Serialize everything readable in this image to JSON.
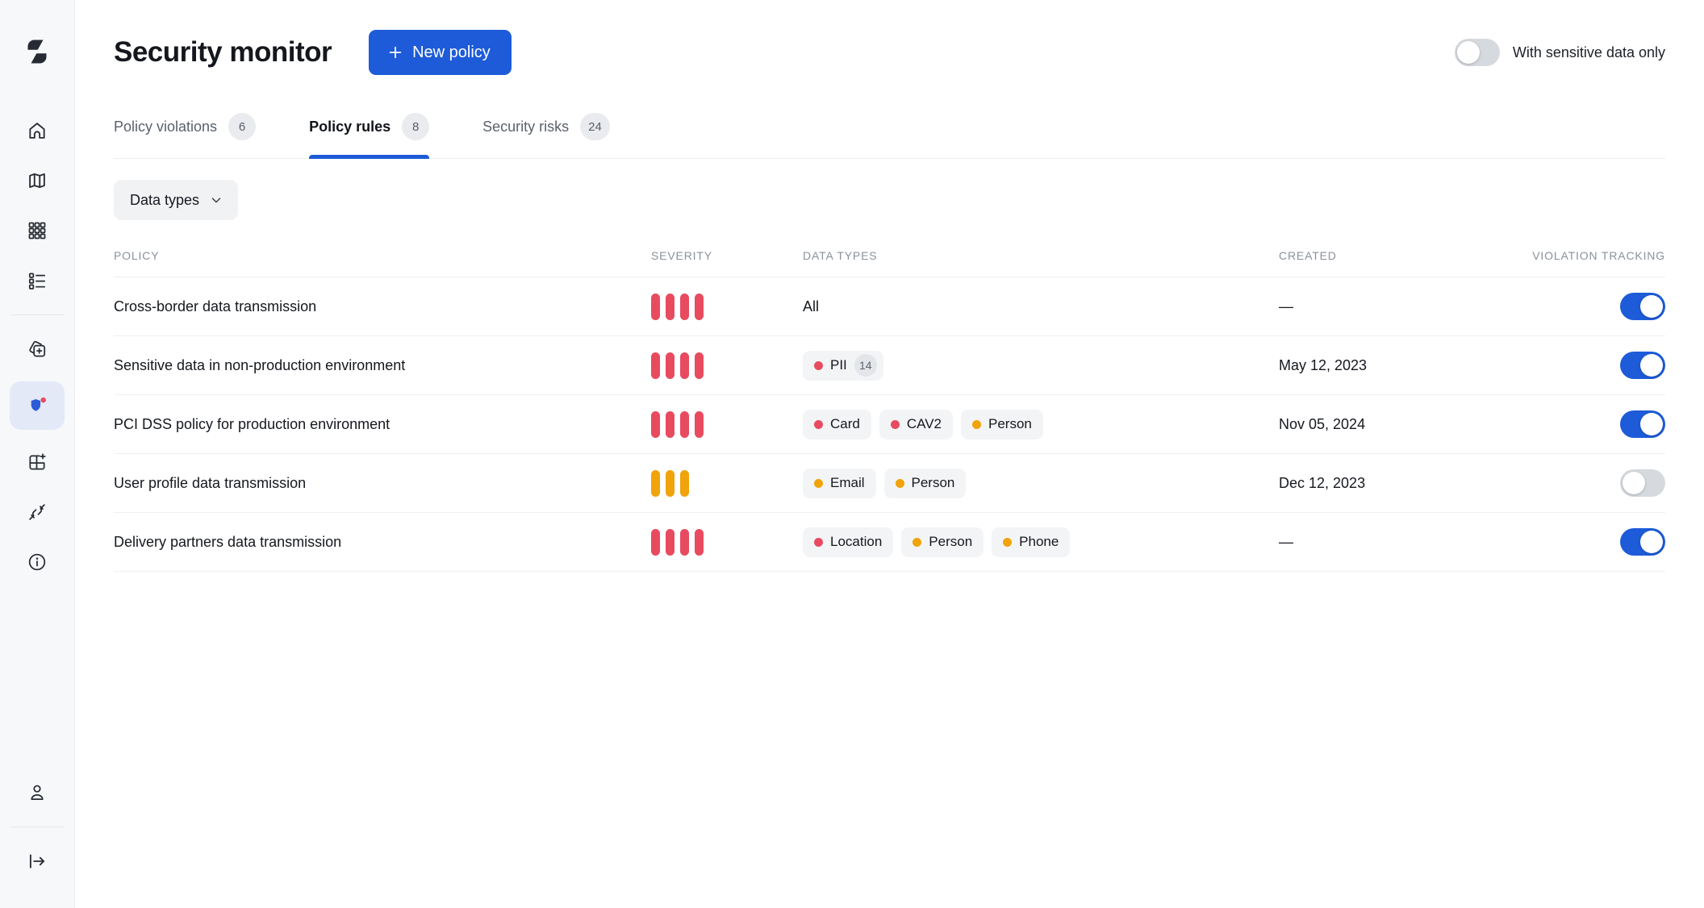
{
  "header": {
    "title": "Security monitor",
    "new_policy_label": "New policy",
    "sensitive_toggle_label": "With sensitive data only",
    "sensitive_toggle_on": false
  },
  "sidebar": {
    "items": [
      {
        "name": "home",
        "active": false
      },
      {
        "name": "map",
        "active": false
      },
      {
        "name": "apps-grid",
        "active": false
      },
      {
        "name": "task-list",
        "active": false
      },
      {
        "name": "copy-add",
        "active": false
      },
      {
        "name": "security-shield",
        "active": true,
        "notification": true
      },
      {
        "name": "grid-add",
        "active": false
      },
      {
        "name": "integrations-plug",
        "active": false
      },
      {
        "name": "info",
        "active": false
      }
    ],
    "bottom_items": [
      {
        "name": "user-profile"
      },
      {
        "name": "logout"
      }
    ]
  },
  "tabs": [
    {
      "label": "Policy violations",
      "count": "6",
      "active": false
    },
    {
      "label": "Policy rules",
      "count": "8",
      "active": true
    },
    {
      "label": "Security risks",
      "count": "24",
      "active": false
    }
  ],
  "filters": {
    "data_types_label": "Data types"
  },
  "table": {
    "columns": {
      "policy": "POLICY",
      "severity": "SEVERITY",
      "data_types": "DATA TYPES",
      "created": "CREATED",
      "violation_tracking": "VIOLATION TRACKING"
    },
    "rows": [
      {
        "policy": "Cross-border data transmission",
        "severity_level": 4,
        "severity_color": "red",
        "data_types_all": "All",
        "data_types": [],
        "created": "—",
        "tracking_on": true
      },
      {
        "policy": "Sensitive data in non-production environment",
        "severity_level": 4,
        "severity_color": "red",
        "data_types": [
          {
            "label": "PII",
            "dot": "red",
            "count": "14"
          }
        ],
        "created": "May 12, 2023",
        "tracking_on": true
      },
      {
        "policy": "PCI DSS policy for production environment",
        "severity_level": 4,
        "severity_color": "red",
        "data_types": [
          {
            "label": "Card",
            "dot": "red"
          },
          {
            "label": "CAV2",
            "dot": "red"
          },
          {
            "label": "Person",
            "dot": "orange"
          }
        ],
        "created": "Nov 05, 2024",
        "tracking_on": true
      },
      {
        "policy": "User profile data transmission",
        "severity_level": 3,
        "severity_color": "orange",
        "data_types": [
          {
            "label": "Email",
            "dot": "orange"
          },
          {
            "label": "Person",
            "dot": "orange"
          }
        ],
        "created": "Dec 12, 2023",
        "tracking_on": false
      },
      {
        "policy": "Delivery partners data transmission",
        "severity_level": 4,
        "severity_color": "red",
        "data_types": [
          {
            "label": "Location",
            "dot": "red"
          },
          {
            "label": "Person",
            "dot": "orange"
          },
          {
            "label": "Phone",
            "dot": "orange"
          }
        ],
        "created": "—",
        "tracking_on": true
      }
    ]
  },
  "colors": {
    "accent_blue": "#1d5bd8",
    "severity_red": "#e84b5f",
    "severity_orange": "#f0a30b",
    "sidebar_bg": "#f7f8f9",
    "active_item_bg": "#e3e9f7",
    "notification_red": "#e84b5f"
  }
}
